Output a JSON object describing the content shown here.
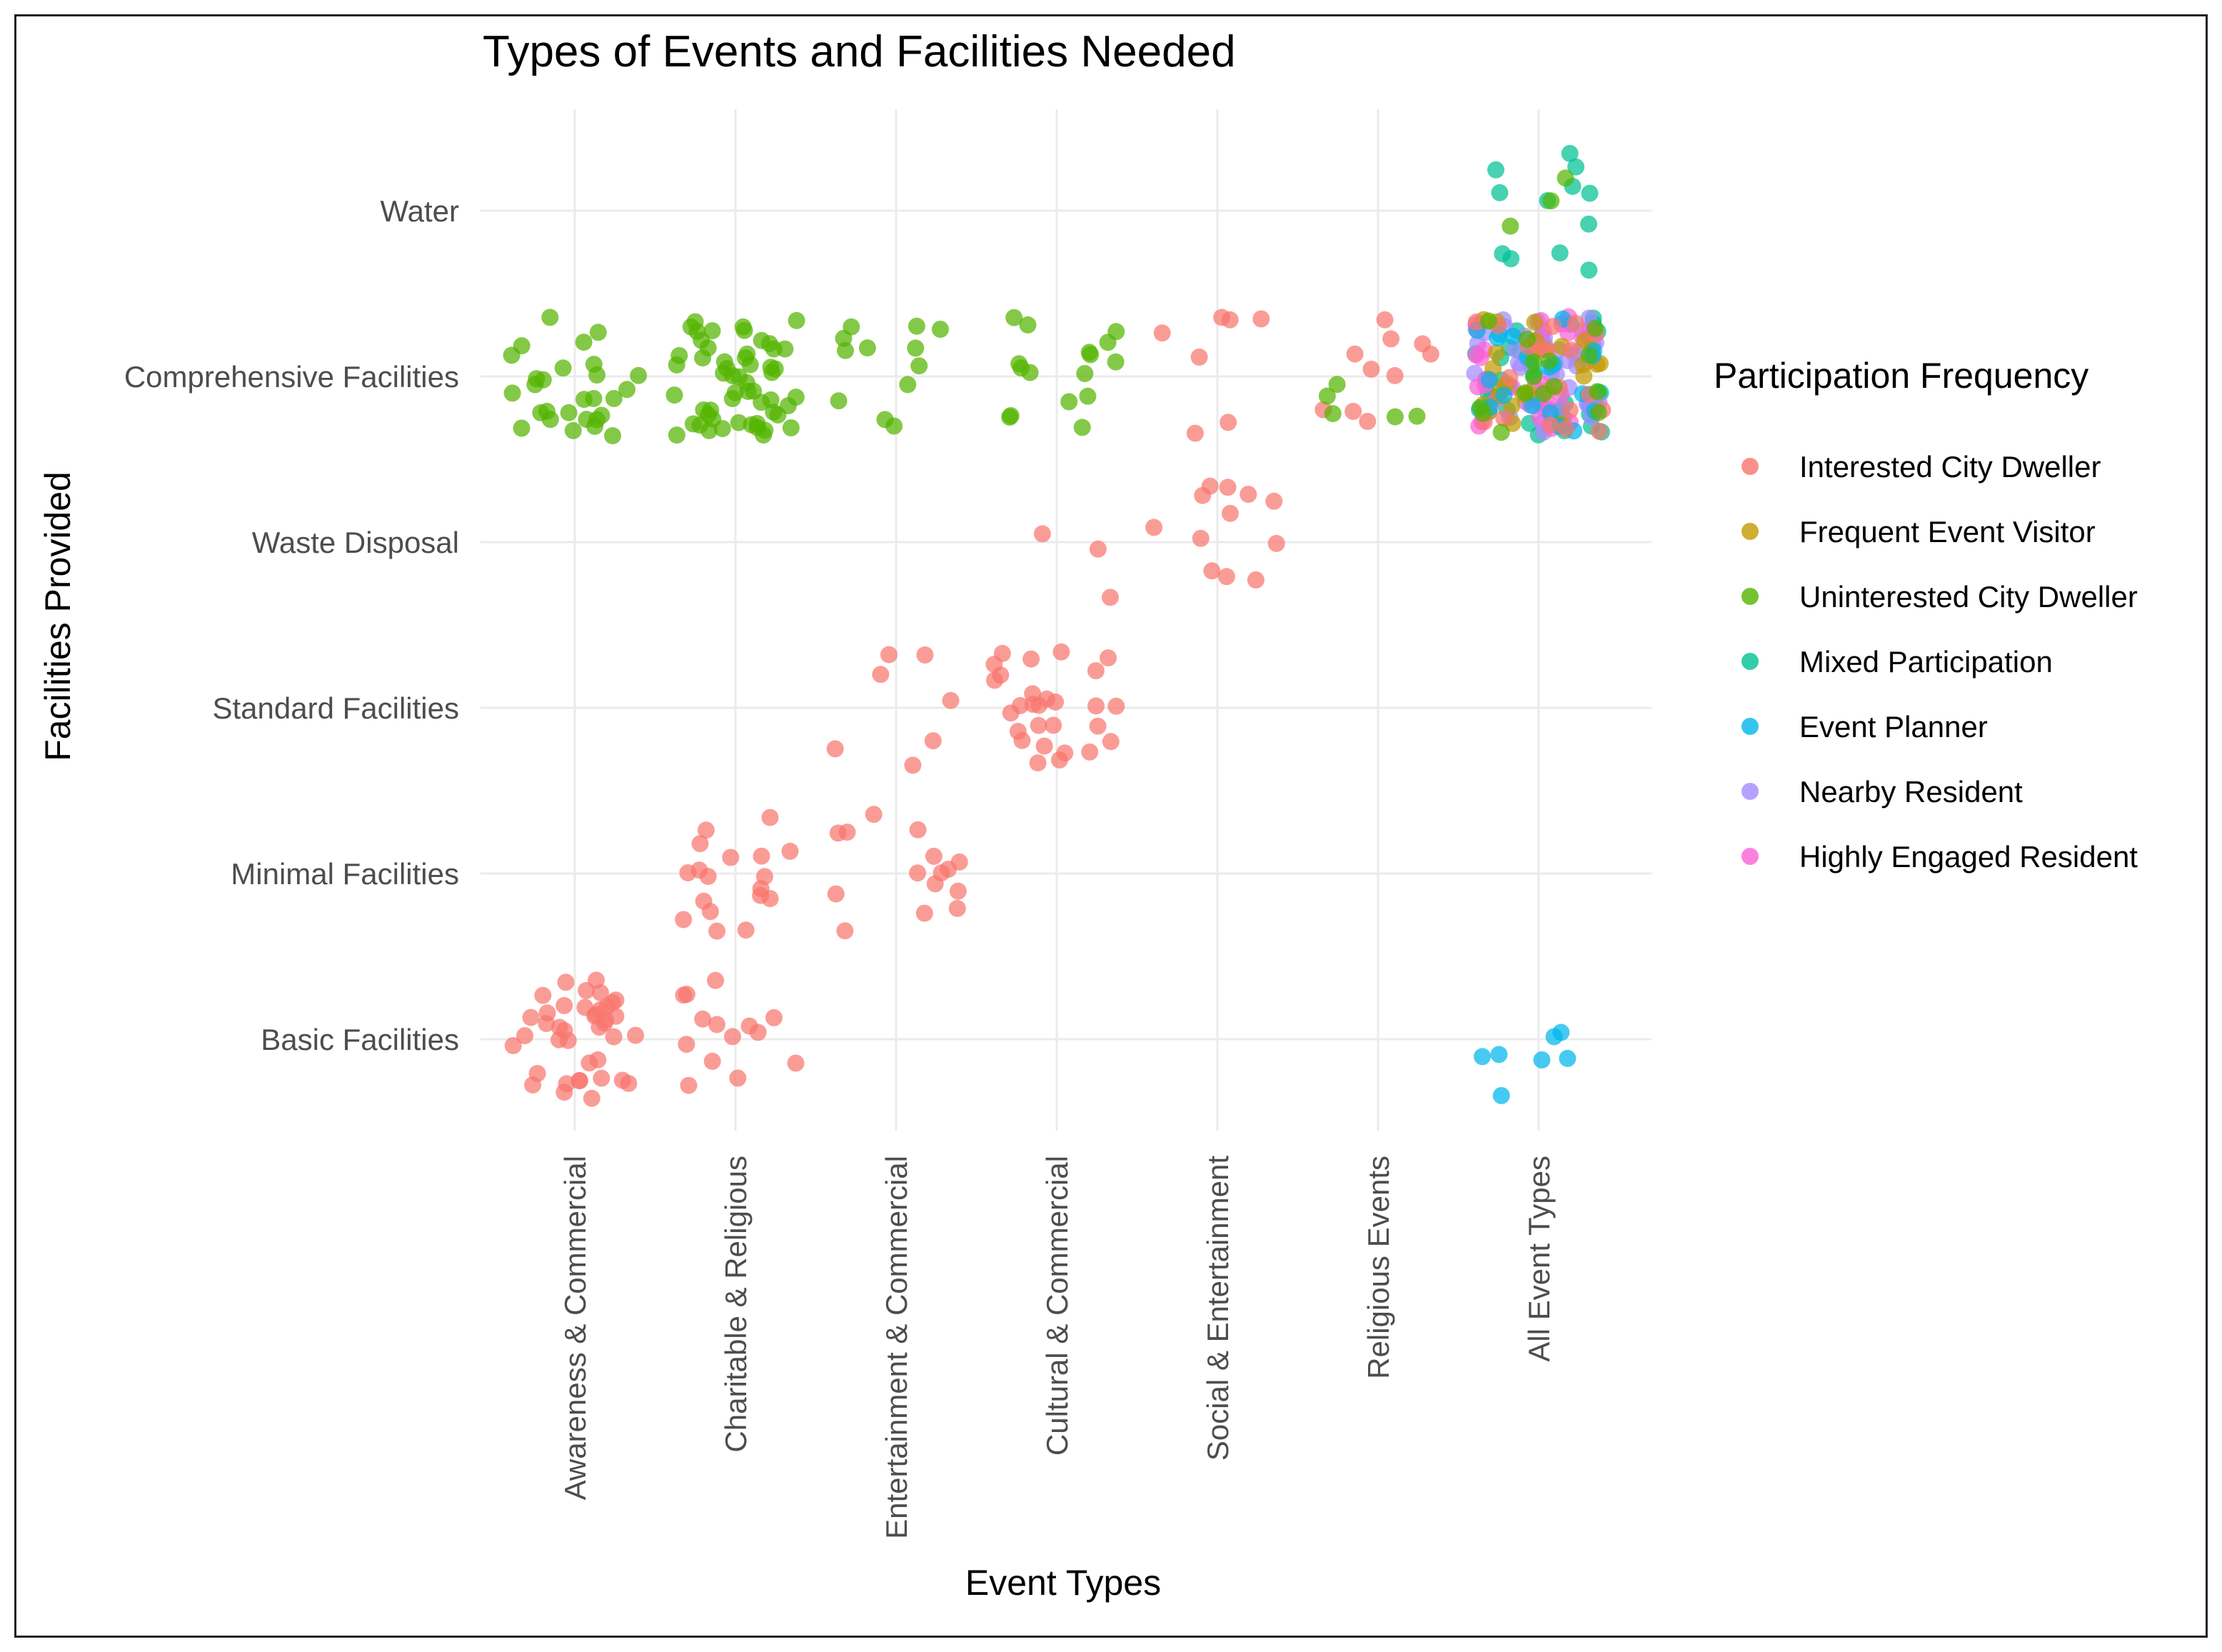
{
  "chart_data": {
    "type": "scatter",
    "jitter": true,
    "title": "Types of Events and Facilities Needed",
    "xlabel": "Event Types",
    "ylabel": "Facilities Provided",
    "x_categories": [
      "Awareness & Commercial",
      "Charitable & Religious",
      "Entertainment & Commercial",
      "Cultural & Commercial",
      "Social & Entertainment",
      "Religious Events",
      "All Event Types"
    ],
    "y_categories": [
      "Basic Facilities",
      "Minimal Facilities",
      "Standard Facilities",
      "Waste Disposal",
      "Comprehensive Facilities",
      "Water"
    ],
    "legend": {
      "title": "Participation Frequency",
      "position": "right",
      "entries": [
        {
          "name": "Interested City Dweller",
          "color": "#F8766D"
        },
        {
          "name": "Frequent Event Visitor",
          "color": "#C49A00"
        },
        {
          "name": "Uninterested City Dweller",
          "color": "#53B400"
        },
        {
          "name": "Mixed Participation",
          "color": "#00C094"
        },
        {
          "name": "Event Planner",
          "color": "#00B6EB"
        },
        {
          "name": "Nearby Resident",
          "color": "#A58AFF"
        },
        {
          "name": "Highly Engaged Resident",
          "color": "#FB61D7"
        }
      ]
    },
    "grid": true,
    "approximate_counts": [
      {
        "x": "Awareness & Commercial",
        "y": "Basic Facilities",
        "group": "Interested City Dweller",
        "count": 40
      },
      {
        "x": "Awareness & Commercial",
        "y": "Comprehensive Facilities",
        "group": "Uninterested City Dweller",
        "count": 28
      },
      {
        "x": "Charitable & Religious",
        "y": "Basic Facilities",
        "group": "Interested City Dweller",
        "count": 14
      },
      {
        "x": "Charitable & Religious",
        "y": "Minimal Facilities",
        "group": "Interested City Dweller",
        "count": 18
      },
      {
        "x": "Charitable & Religious",
        "y": "Comprehensive Facilities",
        "group": "Uninterested City Dweller",
        "count": 55
      },
      {
        "x": "Entertainment & Commercial",
        "y": "Minimal Facilities",
        "group": "Interested City Dweller",
        "count": 15
      },
      {
        "x": "Entertainment & Commercial",
        "y": "Standard Facilities",
        "group": "Interested City Dweller",
        "count": 7
      },
      {
        "x": "Entertainment & Commercial",
        "y": "Comprehensive Facilities",
        "group": "Uninterested City Dweller",
        "count": 12
      },
      {
        "x": "Cultural & Commercial",
        "y": "Standard Facilities",
        "group": "Interested City Dweller",
        "count": 28
      },
      {
        "x": "Cultural & Commercial",
        "y": "Waste Disposal",
        "group": "Interested City Dweller",
        "count": 3
      },
      {
        "x": "Cultural & Commercial",
        "y": "Comprehensive Facilities",
        "group": "Uninterested City Dweller",
        "count": 16
      },
      {
        "x": "Social & Entertainment",
        "y": "Waste Disposal",
        "group": "Interested City Dweller",
        "count": 12
      },
      {
        "x": "Social & Entertainment",
        "y": "Comprehensive Facilities",
        "group": "Interested City Dweller",
        "count": 7
      },
      {
        "x": "Religious Events",
        "y": "Comprehensive Facilities",
        "group": "Interested City Dweller",
        "count": 10
      },
      {
        "x": "Religious Events",
        "y": "Comprehensive Facilities",
        "group": "Uninterested City Dweller",
        "count": 5
      },
      {
        "x": "All Event Types",
        "y": "Water",
        "group": "Mixed Participation",
        "count": 12
      },
      {
        "x": "All Event Types",
        "y": "Water",
        "group": "Uninterested City Dweller",
        "count": 3
      },
      {
        "x": "All Event Types",
        "y": "Comprehensive Facilities",
        "group": "Mixed Participation",
        "count": 40
      },
      {
        "x": "All Event Types",
        "y": "Comprehensive Facilities",
        "group": "Nearby Resident",
        "count": 40
      },
      {
        "x": "All Event Types",
        "y": "Comprehensive Facilities",
        "group": "Highly Engaged Resident",
        "count": 30
      },
      {
        "x": "All Event Types",
        "y": "Comprehensive Facilities",
        "group": "Frequent Event Visitor",
        "count": 25
      },
      {
        "x": "All Event Types",
        "y": "Comprehensive Facilities",
        "group": "Event Planner",
        "count": 20
      },
      {
        "x": "All Event Types",
        "y": "Comprehensive Facilities",
        "group": "Interested City Dweller",
        "count": 20
      },
      {
        "x": "All Event Types",
        "y": "Comprehensive Facilities",
        "group": "Uninterested City Dweller",
        "count": 15
      },
      {
        "x": "All Event Types",
        "y": "Basic Facilities",
        "group": "Event Planner",
        "count": 7
      }
    ]
  }
}
